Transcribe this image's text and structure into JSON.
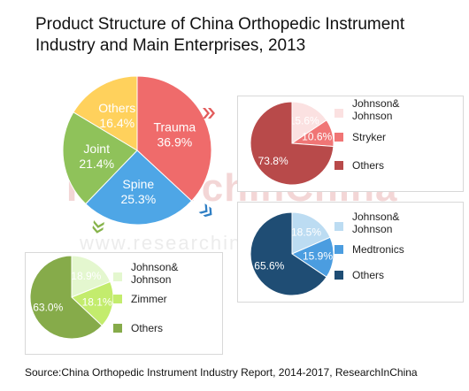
{
  "title": "Product Structure of China Orthopedic Instrument Industry and Main Enterprises, 2013",
  "source": "Source:China Orthopedic Instrument Industry Report, 2014-2017, ResearchInChina",
  "watermark": "ResearchInChina",
  "watermark_url": "www.researchinchina.com",
  "chart_data": [
    {
      "type": "pie",
      "title": "",
      "slices": [
        {
          "label": "Trauma",
          "value": 36.9,
          "color": "#ef6b6b"
        },
        {
          "label": "Spine",
          "value": 25.3,
          "color": "#4ea6e6"
        },
        {
          "label": "Joint",
          "value": 21.4,
          "color": "#8fc25a"
        },
        {
          "label": "Others",
          "value": 16.4,
          "color": "#ffd15c"
        }
      ]
    },
    {
      "type": "pie",
      "title": "",
      "slices": [
        {
          "label": "Johnson& Johnson",
          "value": 15.6,
          "color": "#fbe1e1"
        },
        {
          "label": "Stryker",
          "value": 10.6,
          "color": "#f07575"
        },
        {
          "label": "Others",
          "value": 73.8,
          "color": "#b84a4a"
        }
      ]
    },
    {
      "type": "pie",
      "title": "",
      "slices": [
        {
          "label": "Johnson& Johnson",
          "value": 18.5,
          "color": "#bcdcf2"
        },
        {
          "label": "Medtronics",
          "value": 15.9,
          "color": "#4b9de0"
        },
        {
          "label": "Others",
          "value": 65.6,
          "color": "#1f4d74"
        }
      ]
    },
    {
      "type": "pie",
      "title": "",
      "slices": [
        {
          "label": "Johnson& Johnson",
          "value": 18.9,
          "color": "#e4f7cf"
        },
        {
          "label": "Zimmer",
          "value": 18.1,
          "color": "#c3ec6d"
        },
        {
          "label": "Others",
          "value": 63.0,
          "color": "#86ab4a"
        }
      ]
    }
  ]
}
